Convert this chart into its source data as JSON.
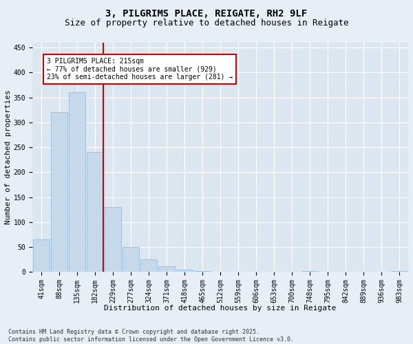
{
  "title_line1": "3, PILGRIMS PLACE, REIGATE, RH2 9LF",
  "title_line2": "Size of property relative to detached houses in Reigate",
  "xlabel": "Distribution of detached houses by size in Reigate",
  "ylabel": "Number of detached properties",
  "footer_line1": "Contains HM Land Registry data © Crown copyright and database right 2025.",
  "footer_line2": "Contains public sector information licensed under the Open Government Licence v3.0.",
  "bar_labels": [
    "41sqm",
    "88sqm",
    "135sqm",
    "182sqm",
    "229sqm",
    "277sqm",
    "324sqm",
    "371sqm",
    "418sqm",
    "465sqm",
    "512sqm",
    "559sqm",
    "606sqm",
    "653sqm",
    "700sqm",
    "748sqm",
    "795sqm",
    "842sqm",
    "889sqm",
    "936sqm",
    "983sqm"
  ],
  "bar_values": [
    65,
    320,
    360,
    240,
    130,
    50,
    25,
    12,
    5,
    2,
    1,
    0,
    0,
    0,
    0,
    2,
    0,
    0,
    0,
    0,
    2
  ],
  "bar_color": "#c5d9ea",
  "bar_edge_color": "#8ab4d4",
  "vline_color": "#cc0000",
  "annotation_text": "3 PILGRIMS PLACE: 215sqm\n← 77% of detached houses are smaller (929)\n23% of semi-detached houses are larger (281) →",
  "annotation_box_color": "#ffffff",
  "annotation_box_edge": "#cc0000",
  "ylim": [
    0,
    460
  ],
  "yticks": [
    0,
    50,
    100,
    150,
    200,
    250,
    300,
    350,
    400,
    450
  ],
  "bg_color": "#e8eef5",
  "plot_bg_color": "#dce6f0",
  "grid_color": "#ffffff",
  "title_fontsize": 10,
  "subtitle_fontsize": 9,
  "axis_label_fontsize": 8,
  "tick_fontsize": 7,
  "footer_fontsize": 6
}
